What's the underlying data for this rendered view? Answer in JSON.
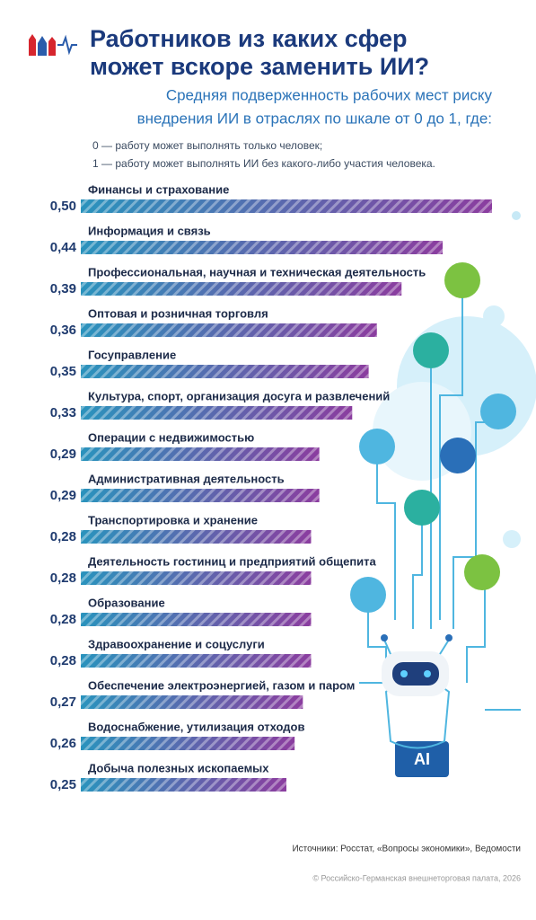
{
  "chart_data": {
    "type": "bar",
    "title": [
      "Работников из каких сфер",
      "может вскоре заменить ИИ?"
    ],
    "subtitle": [
      "Средняя подверженность рабочих мест риску",
      "внедрения ИИ в отраслях по шкале от 0 до 1, где:"
    ],
    "notes": [
      "0 — работу может выполнять только человек;",
      "1 — работу может выполнять ИИ без какого-либо участия человека."
    ],
    "categories": [
      "Финансы и страхование",
      "Информация и связь",
      "Профессиональная, научная и техническая деятельность",
      "Оптовая и розничная торговля",
      "Госуправление",
      "Культура, спорт, организация досуга и развлечений",
      "Операции с недвижимостью",
      "Административная деятельность",
      "Транспортировка и хранение",
      "Деятельность гостиниц и предприятий общепита",
      "Образование",
      "Здравоохранение и соцуслуги",
      "Обеспечение электроэнергией, газом и паром",
      "Водоснабжение, утилизация отходов",
      "Добыча полезных ископаемых"
    ],
    "values": [
      0.5,
      0.44,
      0.39,
      0.36,
      0.35,
      0.33,
      0.29,
      0.29,
      0.28,
      0.28,
      0.28,
      0.28,
      0.27,
      0.26,
      0.25
    ],
    "value_labels": [
      "0,50",
      "0,44",
      "0,39",
      "0,36",
      "0,35",
      "0,33",
      "0,29",
      "0,29",
      "0,28",
      "0,28",
      "0,28",
      "0,28",
      "0,27",
      "0,26",
      "0,25"
    ],
    "colors": [
      "#2a93bd",
      "#8b3d9f"
    ],
    "source": "Источники: Росстат, «Вопросы экономики», Ведомости",
    "copyright": "© Российско-Германская внешнеторговая палата, 2026"
  }
}
